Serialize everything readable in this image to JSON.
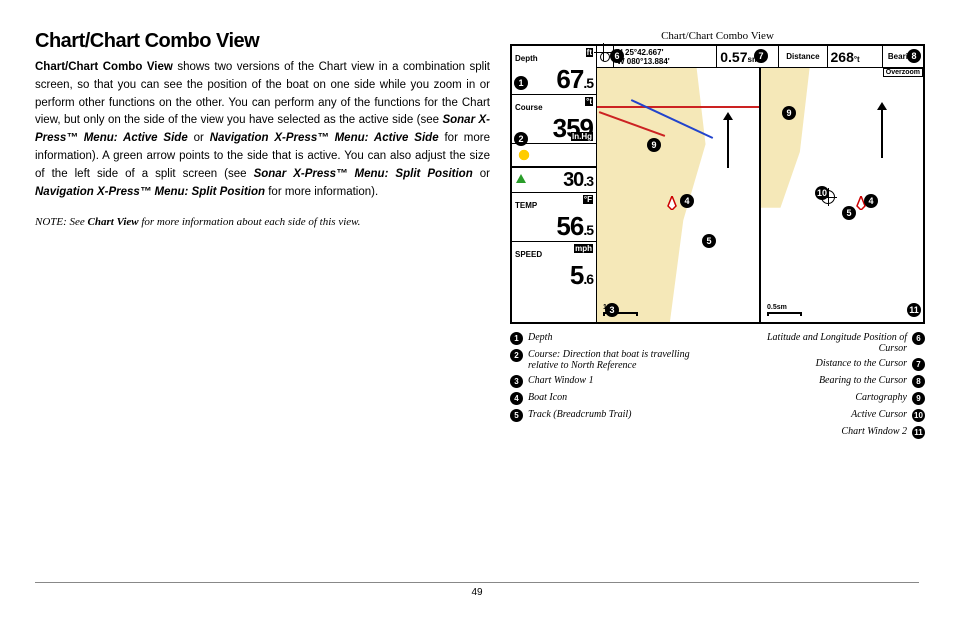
{
  "page": {
    "title": "Chart/Chart Combo View",
    "lead": "Chart/Chart Combo View",
    "body_1": " shows two versions of the Chart view in a combination split screen, so that you can see the position of the boat on one side while you zoom in or perform other functions on the other. You can perform any of the functions for the Chart view, but only on the side of the view you have selected as the active side (see ",
    "em_1": "Sonar X-Press™ Menu: Active Side",
    "body_2": " or ",
    "em_2": "Navigation X-Press™ Menu: Active Side",
    "body_3": " for more information). A green arrow points to the side that is active. You can also adjust the size of the left side of a split screen (see ",
    "em_3": "Sonar X-Press™ Menu: Split Position",
    "body_4": " or ",
    "em_4": "Navigation X-Press™ Menu: Split Position",
    "body_5": " for more information).",
    "note_prefix": "NOTE: See ",
    "note_bold": "Chart View",
    "note_suffix": " for more information about each side of this view.",
    "page_number": "49"
  },
  "figure": {
    "caption": "Chart/Chart Combo View"
  },
  "sidebar": {
    "depth": {
      "label": "Depth",
      "unit": "ft",
      "value": "67",
      "dec": ".5"
    },
    "course": {
      "label": "Course",
      "unit": "°t",
      "value": "359"
    },
    "pressure": {
      "unit": "In.Hg",
      "value": "30",
      "dec": ".3"
    },
    "temp": {
      "label": "TEMP",
      "unit": "°F",
      "value": "56",
      "dec": ".5"
    },
    "speed": {
      "label": "SPEED",
      "unit": "mph",
      "value": "5",
      "dec": ".6"
    }
  },
  "topbar": {
    "latlon": {
      "lat": "N 25°42.667'",
      "lon": "W 080°13.884'"
    },
    "distance": {
      "label": "Distance",
      "value": "0.57",
      "unit": "sm"
    },
    "bearing": {
      "label": "Bearing",
      "value": "268",
      "unit": "°t"
    },
    "overzoom": "Overzoom"
  },
  "chart1": {
    "scale": "1sm"
  },
  "chart2": {
    "scale": "0.5sm"
  },
  "legend": {
    "left": [
      {
        "n": "1",
        "t": "Depth"
      },
      {
        "n": "2",
        "t": "Course: Direction that boat is travelling relative to North Reference"
      },
      {
        "n": "3",
        "t": "Chart Window 1"
      },
      {
        "n": "4",
        "t": "Boat Icon"
      },
      {
        "n": "5",
        "t": "Track (Breadcrumb Trail)"
      }
    ],
    "right": [
      {
        "n": "6",
        "t": "Latitude and Longitude Position of Cursor"
      },
      {
        "n": "7",
        "t": "Distance to the Cursor"
      },
      {
        "n": "8",
        "t": "Bearing to the Cursor"
      },
      {
        "n": "9",
        "t": "Cartography"
      },
      {
        "n": "10",
        "t": "Active Cursor"
      },
      {
        "n": "11",
        "t": "Chart Window 2"
      }
    ]
  },
  "colors": {
    "land": "#f5e8b8",
    "road": "#cc2222",
    "track": "#2244cc",
    "sun": "#ffcc00",
    "arrow": "#2a9d2a"
  }
}
